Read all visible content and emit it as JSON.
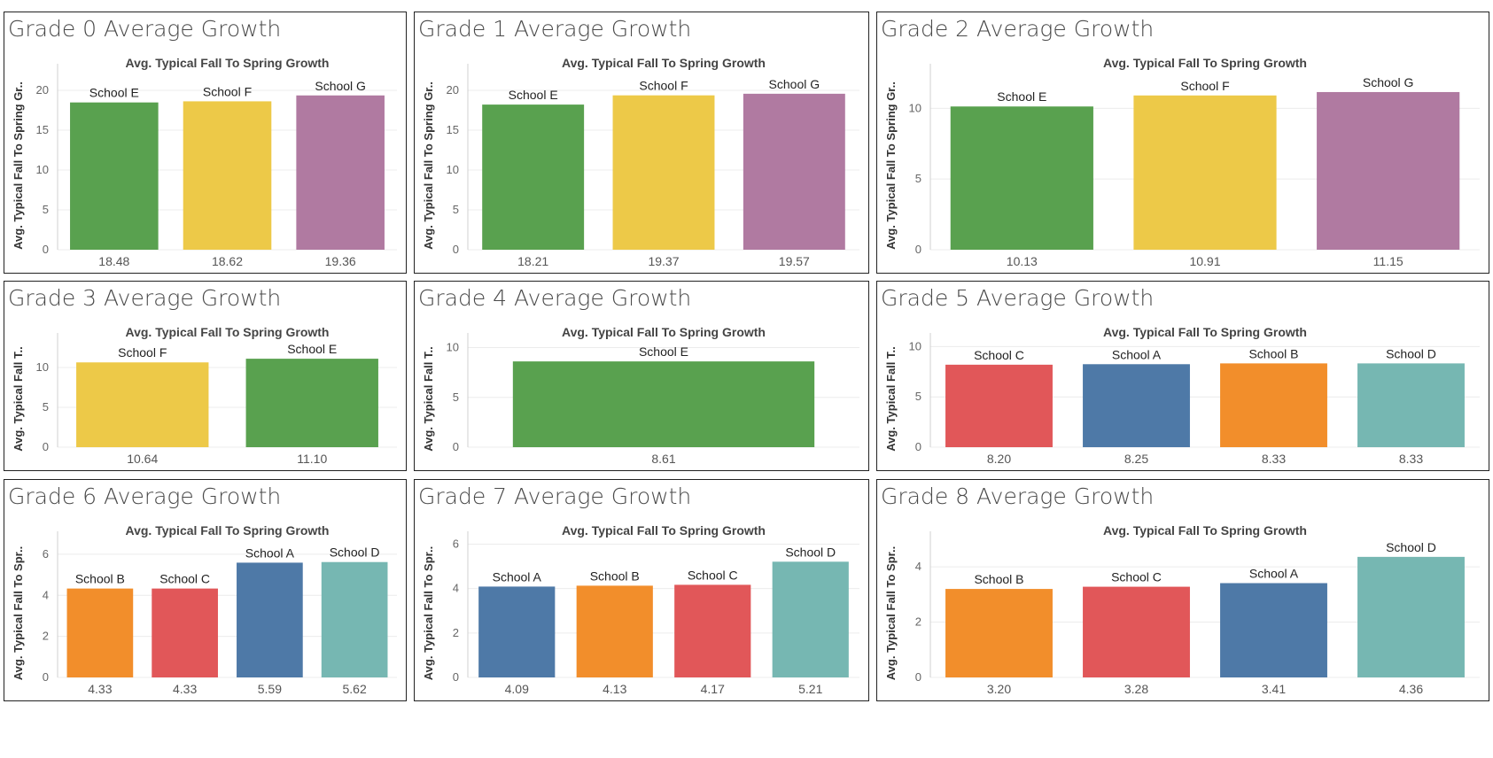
{
  "chart_data": [
    {
      "type": "bar",
      "title": "Grade 0 Average Growth",
      "subtitle": "Avg. Typical Fall To Spring Growth",
      "ylabel": "Avg. Typical Fall To Spring Gr..",
      "ylim": [
        0,
        22
      ],
      "yticks": [
        0,
        5,
        10,
        15,
        20
      ],
      "categories": [
        "School E",
        "School F",
        "School G"
      ],
      "values": [
        18.48,
        18.62,
        19.36
      ],
      "value_labels": [
        "18.48",
        "18.62",
        "19.36"
      ],
      "colors": [
        "#59a14f",
        "#edc948",
        "#b07aa1"
      ]
    },
    {
      "type": "bar",
      "title": "Grade 1 Average Growth",
      "subtitle": "Avg. Typical Fall To Spring Growth",
      "ylabel": "Avg. Typical Fall To Spring Gr..",
      "ylim": [
        0,
        22
      ],
      "yticks": [
        0,
        5,
        10,
        15,
        20
      ],
      "categories": [
        "School E",
        "School F",
        "School G"
      ],
      "values": [
        18.21,
        19.37,
        19.57
      ],
      "value_labels": [
        "18.21",
        "19.37",
        "19.57"
      ],
      "colors": [
        "#59a14f",
        "#edc948",
        "#b07aa1"
      ]
    },
    {
      "type": "bar",
      "title": "Grade 2 Average Growth",
      "subtitle": "Avg. Typical Fall To Spring Growth",
      "ylabel": "Avg. Typical Fall To Spring Gr..",
      "ylim": [
        0,
        12.4
      ],
      "yticks": [
        0,
        5,
        10
      ],
      "categories": [
        "School E",
        "School F",
        "School G"
      ],
      "values": [
        10.13,
        10.91,
        11.15
      ],
      "value_labels": [
        "10.13",
        "10.91",
        "11.15"
      ],
      "colors": [
        "#59a14f",
        "#edc948",
        "#b07aa1"
      ]
    },
    {
      "type": "bar",
      "title": "Grade 3 Average Growth",
      "subtitle": "Avg. Typical Fall To Spring Growth",
      "ylabel": "Avg. Typical Fall T..",
      "ylim": [
        0,
        13
      ],
      "yticks": [
        0,
        5,
        10
      ],
      "categories": [
        "School F",
        "School E"
      ],
      "values": [
        10.64,
        11.1
      ],
      "value_labels": [
        "10.64",
        "11.10"
      ],
      "colors": [
        "#edc948",
        "#59a14f"
      ]
    },
    {
      "type": "bar",
      "title": "Grade 4 Average Growth",
      "subtitle": "Avg. Typical Fall To Spring Growth",
      "ylabel": "Avg. Typical Fall T..",
      "ylim": [
        0,
        10.4
      ],
      "yticks": [
        0,
        5,
        10
      ],
      "categories": [
        "School E"
      ],
      "values": [
        8.61
      ],
      "value_labels": [
        "8.61"
      ],
      "colors": [
        "#59a14f"
      ]
    },
    {
      "type": "bar",
      "title": "Grade 5 Average Growth",
      "subtitle": "Avg. Typical Fall To Spring Growth",
      "ylabel": "Avg. Typical Fall T..",
      "ylim": [
        0,
        10.3
      ],
      "yticks": [
        0,
        5,
        10
      ],
      "categories": [
        "School C",
        "School A",
        "School B",
        "School D"
      ],
      "values": [
        8.2,
        8.25,
        8.33,
        8.33
      ],
      "value_labels": [
        "8.20",
        "8.25",
        "8.33",
        "8.33"
      ],
      "colors": [
        "#e15759",
        "#4e79a7",
        "#f28e2b",
        "#76b7b2"
      ]
    },
    {
      "type": "bar",
      "title": "Grade 6 Average Growth",
      "subtitle": "Avg. Typical Fall To Spring Growth",
      "ylabel": "Avg. Typical Fall To Spr..",
      "ylim": [
        0,
        6.6
      ],
      "yticks": [
        0,
        2,
        4,
        6
      ],
      "categories": [
        "School B",
        "School C",
        "School A",
        "School D"
      ],
      "values": [
        4.33,
        4.33,
        5.59,
        5.62
      ],
      "value_labels": [
        "4.33",
        "4.33",
        "5.59",
        "5.62"
      ],
      "colors": [
        "#f28e2b",
        "#e15759",
        "#4e79a7",
        "#76b7b2"
      ]
    },
    {
      "type": "bar",
      "title": "Grade 7 Average Growth",
      "subtitle": "Avg. Typical Fall To Spring Growth",
      "ylabel": "Avg. Typical Fall To Spr..",
      "ylim": [
        0,
        6.1
      ],
      "yticks": [
        0,
        2,
        4,
        6
      ],
      "categories": [
        "School A",
        "School B",
        "School C",
        "School D"
      ],
      "values": [
        4.09,
        4.13,
        4.17,
        5.21
      ],
      "value_labels": [
        "4.09",
        "4.13",
        "4.17",
        "5.21"
      ],
      "colors": [
        "#4e79a7",
        "#f28e2b",
        "#e15759",
        "#76b7b2"
      ]
    },
    {
      "type": "bar",
      "title": "Grade 8 Average Growth",
      "subtitle": "Avg. Typical Fall To Spring Growth",
      "ylabel": "Avg. Typical Fall To Spr..",
      "ylim": [
        0,
        4.9
      ],
      "yticks": [
        0,
        2,
        4
      ],
      "categories": [
        "School B",
        "School C",
        "School A",
        "School D"
      ],
      "values": [
        3.2,
        3.28,
        3.41,
        4.36
      ],
      "value_labels": [
        "3.20",
        "3.28",
        "3.41",
        "4.36"
      ],
      "colors": [
        "#f28e2b",
        "#e15759",
        "#4e79a7",
        "#76b7b2"
      ]
    }
  ]
}
